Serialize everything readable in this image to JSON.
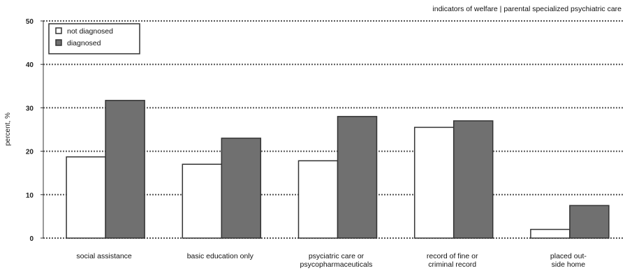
{
  "chart_data": {
    "type": "bar",
    "subtitle": "indicators of welfare  | parental specialized psychiatric care",
    "ylabel": "percent, %",
    "ylim": [
      0,
      50
    ],
    "yticks": [
      "0",
      "10",
      "20",
      "30",
      "40",
      "50"
    ],
    "categories": [
      [
        "social assistance"
      ],
      [
        "basic education only"
      ],
      [
        "psyciatric care or",
        "psycopharmaceuticals"
      ],
      [
        "record of fine or",
        "criminal record"
      ],
      [
        "placed out-",
        "side home"
      ]
    ],
    "series": [
      {
        "name": "not diagnosed",
        "color": "#ffffff",
        "values": [
          18.7,
          17.0,
          17.8,
          25.5,
          2.0
        ]
      },
      {
        "name": "diagnosed",
        "color": "#707070",
        "values": [
          31.7,
          23.0,
          28.0,
          27.0,
          7.5
        ]
      }
    ],
    "grid": true,
    "legend_position": "top-left"
  }
}
